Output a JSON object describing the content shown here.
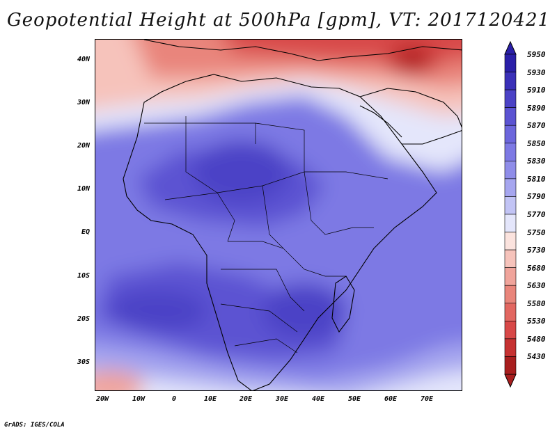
{
  "title": "Geopotential Height at 500hPa [gpm], VT: 2017120421",
  "credit": "GrADS: IGES/COLA",
  "lat_ticks": [
    "40N",
    "30N",
    "20N",
    "10N",
    "EQ",
    "10S",
    "20S",
    "30S"
  ],
  "lon_ticks": [
    "20W",
    "10W",
    "0",
    "10E",
    "20E",
    "30E",
    "40E",
    "50E",
    "60E",
    "70E"
  ],
  "colorbar": {
    "levels": [
      "5950",
      "5930",
      "5910",
      "5890",
      "5870",
      "5850",
      "5830",
      "5810",
      "5790",
      "5770",
      "5750",
      "5730",
      "5680",
      "5630",
      "5580",
      "5530",
      "5480",
      "5430"
    ],
    "colors": [
      "#2a1fa8",
      "#3a30b8",
      "#4b42c6",
      "#5b53d2",
      "#6c66dc",
      "#7d79e4",
      "#8f8de9",
      "#a6a6ef",
      "#c2c4f5",
      "#e4e6fb",
      "#fbe3de",
      "#f6c3bb",
      "#f0a49b",
      "#e9857b",
      "#e26761",
      "#d84848",
      "#c63232",
      "#a81e1e"
    ]
  }
}
